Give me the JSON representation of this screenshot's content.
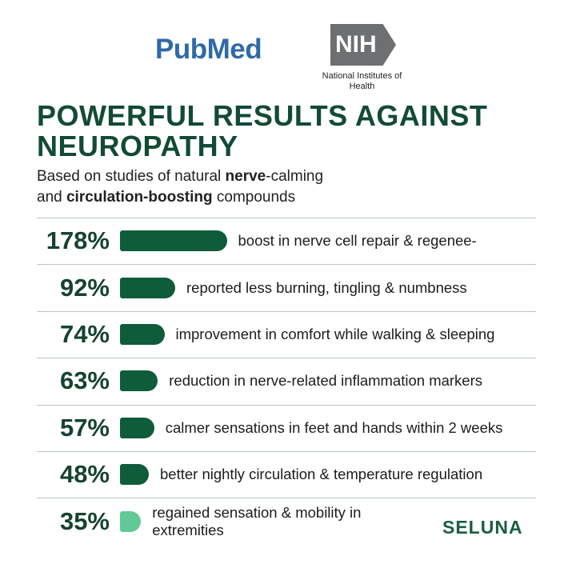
{
  "header": {
    "pubmed": "PubMed",
    "nih": "NIH",
    "nih_name": "National Institutes of Health"
  },
  "brand": "SELUNA",
  "chart_data": {
    "type": "bar",
    "orientation": "horizontal",
    "title": "POWERFUL RESULTS AGAINST NEUROPATHY",
    "subtitle": [
      "Based on studies of natural ",
      "nerve",
      "-calming",
      "and ",
      "circulation-boosting",
      " compounds"
    ],
    "categories": [
      "boost in nerve cell repair & regenee-",
      "reported less burning, tingling & numbness",
      "improvement in comfort while walking & sleeping",
      "reduction in nerve-related inflammation markers",
      "calmer sensations in feet and hands within 2 weeks",
      "better nightly circulation & temperature regulation",
      "regained sensation & mobility in extremities"
    ],
    "values": [
      178,
      92,
      74,
      63,
      57,
      48,
      35
    ],
    "value_labels": [
      "178%",
      "92%",
      "74%",
      "63%",
      "57%",
      "48%",
      "35%"
    ],
    "colors": [
      "#0f5c3a",
      "#0f5c3a",
      "#0f5c3a",
      "#0f5c3a",
      "#0f5c3a",
      "#0f5c3a",
      "#62c996"
    ]
  }
}
